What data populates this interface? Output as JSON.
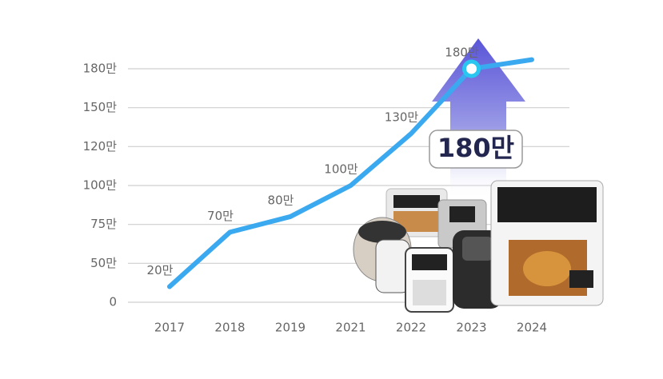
{
  "chart_data": {
    "type": "line",
    "categories": [
      "2017",
      "2018",
      "2019",
      "2021",
      "2022",
      "2023",
      "2024"
    ],
    "series": [
      {
        "color": "#3aa9f0",
        "values": [
          20,
          70,
          80,
          100,
          130,
          180,
          187
        ],
        "value_labels": [
          "20만",
          "70만",
          "80만",
          "100만",
          "130만",
          "180만",
          null
        ]
      }
    ],
    "ylim": [
      0,
      180
    ],
    "yticks": [
      0,
      {
        "value": 50,
        "label": "50만"
      },
      {
        "value": 75,
        "label": "75만"
      },
      {
        "value": 100,
        "label": "100만"
      },
      {
        "value": 120,
        "label": "120만"
      },
      {
        "value": 150,
        "label": "150만"
      },
      {
        "value": 180,
        "label": "180만"
      }
    ],
    "grid": true,
    "annotation": "180만"
  }
}
